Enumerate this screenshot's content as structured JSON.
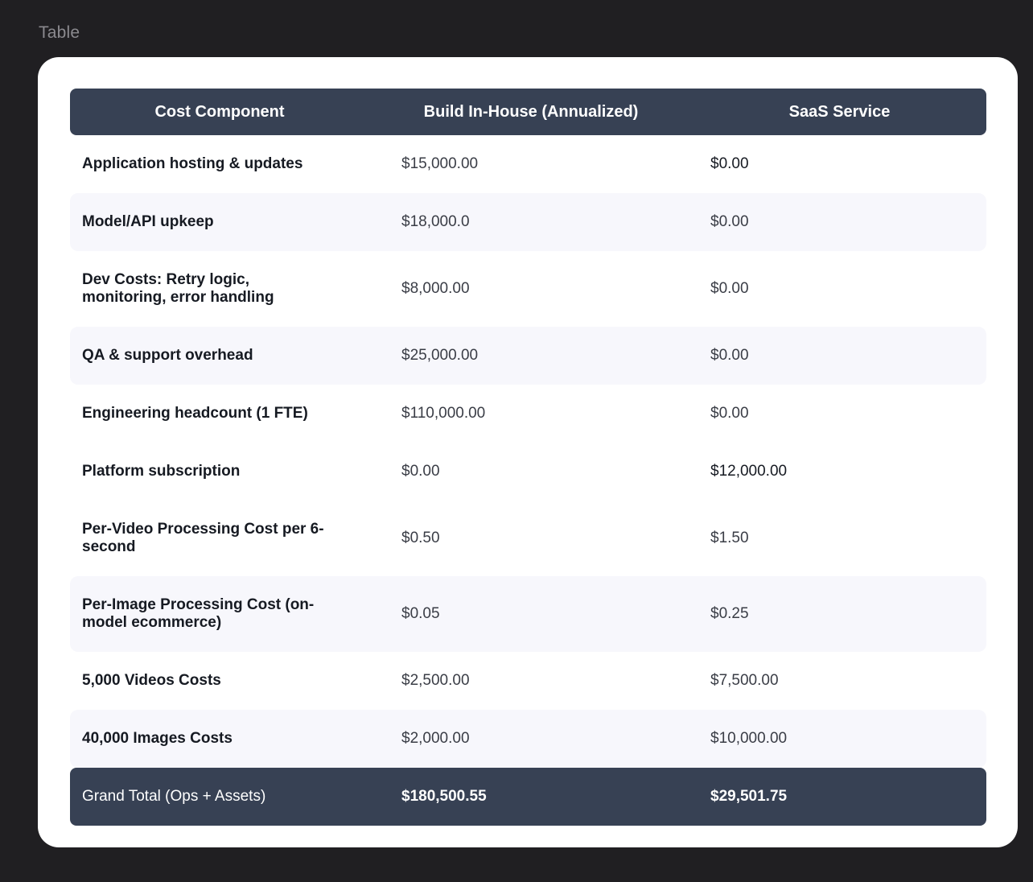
{
  "frame_label": "Table",
  "table": {
    "headers": [
      "Cost Component",
      "Build In-House (Annualized)",
      "SaaS Service"
    ],
    "rows": [
      {
        "component": "Application hosting & updates",
        "build": "$15,000.00",
        "saas": "$0.00"
      },
      {
        "component": "Model/API upkeep",
        "build": "$18,000.0",
        "saas": "$0.00"
      },
      {
        "component": "Dev Costs: Retry logic, monitoring, error handling",
        "build": "$8,000.00",
        "saas": "$0.00"
      },
      {
        "component": "QA & support overhead",
        "build": "$25,000.00",
        "saas": "$0.00"
      },
      {
        "component": "Engineering headcount (1 FTE)",
        "build": "$110,000.00",
        "saas": "$0.00"
      },
      {
        "component": "Platform subscription",
        "build": "$0.00",
        "saas": "$12,000.00"
      },
      {
        "component": "Per-Video Processing Cost per 6-second",
        "build": "$0.50",
        "saas": "$1.50"
      },
      {
        "component": "Per-Image Processing Cost (on-model ecommerce)",
        "build": "$0.05",
        "saas": "$0.25"
      },
      {
        "component": "5,000 Videos Costs",
        "build": "$2,500.00",
        "saas": "$7,500.00"
      },
      {
        "component": "40,000 Images Costs",
        "build": "$2,000.00",
        "saas": "$10,000.00"
      }
    ],
    "total": {
      "component": "Grand Total (Ops + Assets)",
      "build": "$180,500.55",
      "saas": "$29,501.75"
    }
  }
}
